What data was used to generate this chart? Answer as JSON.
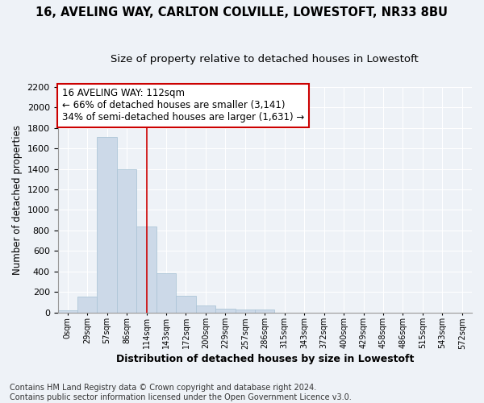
{
  "title1": "16, AVELING WAY, CARLTON COLVILLE, LOWESTOFT, NR33 8BU",
  "title2": "Size of property relative to detached houses in Lowestoft",
  "xlabel": "Distribution of detached houses by size in Lowestoft",
  "ylabel": "Number of detached properties",
  "bin_labels": [
    "0sqm",
    "29sqm",
    "57sqm",
    "86sqm",
    "114sqm",
    "143sqm",
    "172sqm",
    "200sqm",
    "229sqm",
    "257sqm",
    "286sqm",
    "315sqm",
    "343sqm",
    "372sqm",
    "400sqm",
    "429sqm",
    "458sqm",
    "486sqm",
    "515sqm",
    "543sqm",
    "572sqm"
  ],
  "bar_heights": [
    20,
    155,
    1710,
    1400,
    835,
    385,
    165,
    65,
    38,
    28,
    28,
    0,
    0,
    0,
    0,
    0,
    0,
    0,
    0,
    0,
    0
  ],
  "bar_color": "#ccd9e8",
  "bar_edge_color": "#aec6d8",
  "vline_x_index": 4,
  "vline_color": "#cc0000",
  "annotation_line1": "16 AVELING WAY: 112sqm",
  "annotation_line2": "← 66% of detached houses are smaller (3,141)",
  "annotation_line3": "34% of semi-detached houses are larger (1,631) →",
  "annotation_box_color": "white",
  "annotation_box_edge": "#cc0000",
  "ylim": [
    0,
    2200
  ],
  "yticks": [
    0,
    200,
    400,
    600,
    800,
    1000,
    1200,
    1400,
    1600,
    1800,
    2000,
    2200
  ],
  "footnote": "Contains HM Land Registry data © Crown copyright and database right 2024.\nContains public sector information licensed under the Open Government Licence v3.0.",
  "bg_color": "#eef2f7",
  "grid_color": "#ffffff",
  "title1_fontsize": 10.5,
  "title2_fontsize": 9.5,
  "xlabel_fontsize": 9,
  "ylabel_fontsize": 8.5,
  "tick_fontsize": 8,
  "annotation_fontsize": 8.5,
  "footnote_fontsize": 7
}
